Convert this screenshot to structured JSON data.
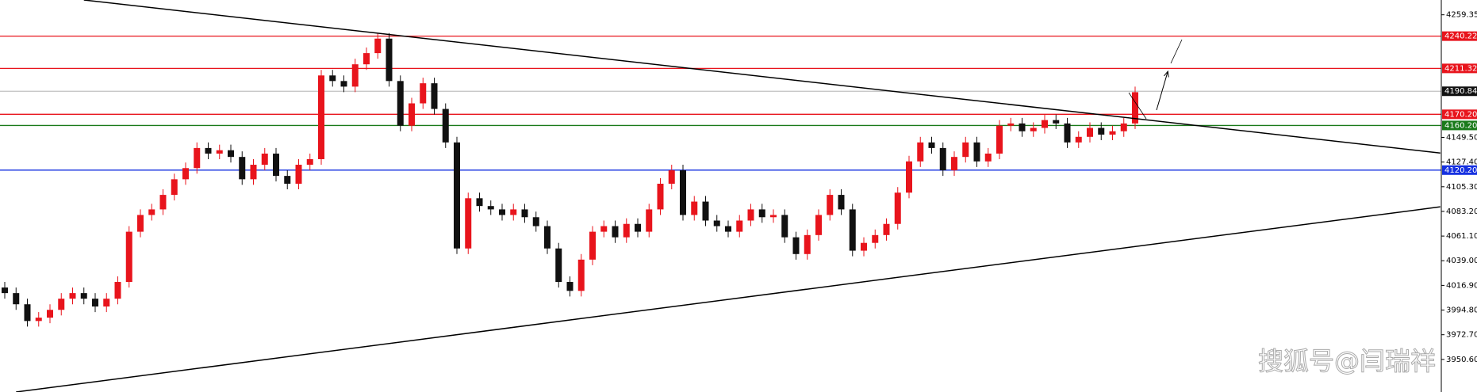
{
  "chart_data": {
    "type": "candlestick",
    "ylim": [
      3921.4,
      4272.6
    ],
    "yticks": [
      {
        "value": 4259.35,
        "label": "4259.35"
      },
      {
        "value": 4149.5,
        "label": "4149.50"
      },
      {
        "value": 4127.4,
        "label": "4127.40"
      },
      {
        "value": 4105.3,
        "label": "4105.30"
      },
      {
        "value": 4083.2,
        "label": "4083.20"
      },
      {
        "value": 4061.1,
        "label": "4061.10"
      },
      {
        "value": 4039.0,
        "label": "4039.00"
      },
      {
        "value": 4016.9,
        "label": "4016.90"
      },
      {
        "value": 3994.8,
        "label": "3994.80"
      },
      {
        "value": 3972.7,
        "label": "3972.70"
      },
      {
        "value": 3950.6,
        "label": "3950.60"
      }
    ],
    "up_color": "#e8141c",
    "down_color": "#111111",
    "open": [
      4015,
      4010,
      4000,
      3985,
      3988,
      3995,
      4005,
      4010,
      4005,
      3998,
      4005,
      4020,
      4065,
      4080,
      4085,
      4098,
      4112,
      4122,
      4140,
      4135,
      4138,
      4132,
      4112,
      4125,
      4135,
      4115,
      4108,
      4125,
      4130,
      4205,
      4200,
      4195,
      4215,
      4225,
      4238,
      4200,
      4160,
      4180,
      4198,
      4175,
      4145,
      4050,
      4095,
      4088,
      4085,
      4080,
      4085,
      4078,
      4070,
      4050,
      4020,
      4012,
      4040,
      4065,
      4070,
      4060,
      4072,
      4065,
      4085,
      4108,
      4120,
      4080,
      4092,
      4075,
      4070,
      4065,
      4075,
      4085,
      4078,
      4080,
      4060,
      4045,
      4062,
      4080,
      4098,
      4085,
      4048,
      4055,
      4062,
      4072,
      4100,
      4128,
      4145,
      4140,
      4120,
      4132,
      4145,
      4128,
      4135,
      4160,
      4162,
      4155,
      4158,
      4165,
      4162,
      4145,
      4150,
      4158,
      4152,
      4155,
      4162
    ],
    "high": [
      4020,
      4015,
      4005,
      3993,
      4000,
      4010,
      4015,
      4015,
      4010,
      4010,
      4025,
      4070,
      4085,
      4090,
      4103,
      4117,
      4127,
      4145,
      4145,
      4143,
      4143,
      4137,
      4130,
      4140,
      4140,
      4120,
      4130,
      4135,
      4210,
      4210,
      4205,
      4220,
      4230,
      4243,
      4243,
      4205,
      4185,
      4203,
      4203,
      4180,
      4150,
      4100,
      4100,
      4093,
      4090,
      4090,
      4090,
      4083,
      4075,
      4055,
      4025,
      4045,
      4070,
      4075,
      4075,
      4077,
      4077,
      4090,
      4113,
      4125,
      4125,
      4097,
      4097,
      4080,
      4075,
      4080,
      4090,
      4090,
      4085,
      4085,
      4065,
      4067,
      4085,
      4103,
      4103,
      4090,
      4060,
      4067,
      4077,
      4105,
      4133,
      4150,
      4150,
      4145,
      4137,
      4150,
      4150,
      4140,
      4165,
      4167,
      4167,
      4163,
      4170,
      4170,
      4167,
      4155,
      4163,
      4163,
      4160,
      4167,
      4195
    ],
    "low": [
      4005,
      3995,
      3980,
      3980,
      3983,
      3990,
      4000,
      4000,
      3993,
      3993,
      4000,
      4015,
      4060,
      4075,
      4080,
      4093,
      4107,
      4117,
      4130,
      4130,
      4127,
      4107,
      4107,
      4120,
      4110,
      4103,
      4103,
      4120,
      4125,
      4195,
      4190,
      4190,
      4210,
      4220,
      4195,
      4155,
      4155,
      4175,
      4170,
      4140,
      4045,
      4045,
      4083,
      4080,
      4075,
      4075,
      4073,
      4065,
      4045,
      4015,
      4007,
      4007,
      4035,
      4060,
      4055,
      4055,
      4060,
      4060,
      4080,
      4103,
      4075,
      4075,
      4070,
      4065,
      4060,
      4060,
      4070,
      4073,
      4073,
      4055,
      4040,
      4040,
      4057,
      4075,
      4080,
      4043,
      4043,
      4050,
      4057,
      4067,
      4095,
      4123,
      4135,
      4115,
      4115,
      4127,
      4123,
      4123,
      4130,
      4155,
      4150,
      4150,
      4153,
      4157,
      4140,
      4140,
      4145,
      4147,
      4147,
      4150,
      4157
    ],
    "close": [
      4010,
      4000,
      3985,
      3988,
      3995,
      4005,
      4010,
      4005,
      3998,
      4005,
      4020,
      4065,
      4080,
      4085,
      4098,
      4112,
      4122,
      4140,
      4135,
      4138,
      4132,
      4112,
      4125,
      4135,
      4115,
      4108,
      4125,
      4130,
      4205,
      4200,
      4195,
      4215,
      4225,
      4238,
      4200,
      4160,
      4180,
      4198,
      4175,
      4145,
      4050,
      4095,
      4088,
      4085,
      4080,
      4085,
      4078,
      4070,
      4050,
      4020,
      4012,
      4040,
      4065,
      4070,
      4060,
      4072,
      4065,
      4085,
      4108,
      4120,
      4080,
      4092,
      4075,
      4070,
      4065,
      4075,
      4085,
      4078,
      4080,
      4060,
      4045,
      4062,
      4080,
      4098,
      4085,
      4048,
      4055,
      4062,
      4072,
      4100,
      4128,
      4145,
      4140,
      4120,
      4132,
      4145,
      4128,
      4135,
      4160,
      4162,
      4155,
      4158,
      4165,
      4162,
      4145,
      4150,
      4158,
      4152,
      4155,
      4162,
      4190
    ],
    "levels": [
      {
        "value": 4240.22,
        "label": "4240.22",
        "color": "#e8141c"
      },
      {
        "value": 4211.32,
        "label": "4211.32",
        "color": "#e8141c"
      },
      {
        "value": 4190.84,
        "label": "4190.84",
        "color": "#c0c0c0",
        "label_color": "#111111"
      },
      {
        "value": 4170.2,
        "label": "4170.20",
        "color": "#e8141c"
      },
      {
        "value": 4160.2,
        "label": "4160.20",
        "color": "#1a7a1a"
      },
      {
        "value": 4120.2,
        "label": "4120.20",
        "color": "#1530e0"
      }
    ],
    "trendlines": [
      {
        "x": [
          7,
          127
        ],
        "y": [
          4272.6,
          4135.5
        ],
        "color": "#000000"
      },
      {
        "x": [
          1,
          127
        ],
        "y": [
          3921.4,
          4087.3
        ],
        "color": "#000000"
      }
    ],
    "watermark": "搜狐号@闫瑞祥"
  }
}
